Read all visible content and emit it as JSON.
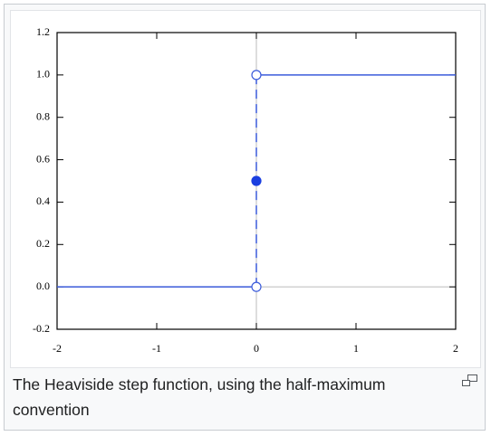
{
  "chart_data": {
    "type": "line",
    "xlim": [
      -2,
      2
    ],
    "xticks": [
      -2,
      -1,
      0,
      1,
      2
    ],
    "ylim": [
      -0.2,
      1.2
    ],
    "yticks": [
      -0.2,
      {
        "value": 0,
        "label": "0.0"
      },
      0.2,
      0.4,
      0.6,
      0.8,
      {
        "value": 1,
        "label": "1.0"
      },
      1.2
    ],
    "series": [
      {
        "x": [
          -2,
          0
        ],
        "values": [
          0,
          0
        ],
        "color": "#3b5bdb",
        "dashed": false
      },
      {
        "x": [
          0,
          2
        ],
        "values": [
          1,
          1
        ],
        "color": "#3b5bdb",
        "dashed": false
      },
      {
        "x": [
          0,
          0
        ],
        "values": [
          0,
          1
        ],
        "color": "#3b5bdb",
        "dashed": true
      }
    ],
    "points": [
      {
        "x": 0,
        "y": 0.5,
        "filled": true,
        "color": "#1a3fe0"
      },
      {
        "x": 0,
        "y": 0,
        "filled": false,
        "color": "#3b5bdb"
      },
      {
        "x": 0,
        "y": 1,
        "filled": false,
        "color": "#3b5bdb"
      }
    ],
    "zero_lines": true,
    "caption": "The Heaviside step function, using the half-maximum convention"
  }
}
